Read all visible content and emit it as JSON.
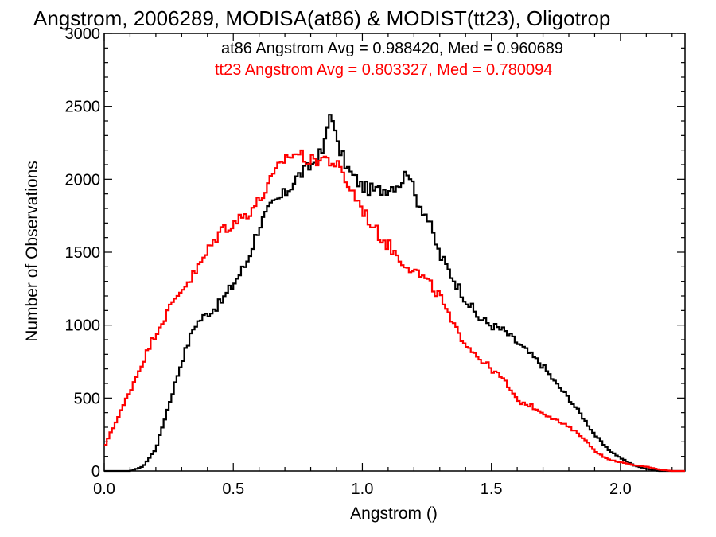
{
  "chart_data": {
    "type": "line",
    "title": "Angstrom, 2006289, MODISA(at86) & MODIST(tt23), Oligotrop",
    "xlabel": "Angstrom ()",
    "ylabel": "Number of Observations",
    "xlim": [
      0.0,
      2.25
    ],
    "ylim": [
      0,
      3000
    ],
    "xticks": [
      0.0,
      0.5,
      1.0,
      1.5,
      2.0
    ],
    "xtick_labels": [
      "0.0",
      "0.5",
      "1.0",
      "1.5",
      "2.0"
    ],
    "yticks": [
      0,
      500,
      1000,
      1500,
      2000,
      2500,
      3000
    ],
    "ytick_labels": [
      "0",
      "500",
      "1000",
      "1500",
      "2000",
      "2500",
      "3000"
    ],
    "step": "histogram",
    "annotations": [
      {
        "text": "at86 Angstrom Avg = 0.988420, Med = 0.960689",
        "color": "#000000"
      },
      {
        "text": "tt23 Angstrom Avg = 0.803327, Med = 0.780094",
        "color": "#ff0000"
      }
    ],
    "series": [
      {
        "color": "#000000",
        "x": [
          0.0,
          0.1,
          0.15,
          0.2,
          0.25,
          0.3,
          0.35,
          0.4,
          0.45,
          0.5,
          0.55,
          0.6,
          0.65,
          0.7,
          0.75,
          0.8,
          0.85,
          0.87,
          0.88,
          0.9,
          0.95,
          1.0,
          1.05,
          1.1,
          1.15,
          1.18,
          1.2,
          1.25,
          1.3,
          1.35,
          1.4,
          1.45,
          1.5,
          1.55,
          1.6,
          1.65,
          1.7,
          1.75,
          1.8,
          1.85,
          1.9,
          1.95,
          2.0,
          2.05,
          2.1,
          2.15,
          2.2,
          2.25
        ],
        "y": [
          0,
          0,
          30,
          150,
          450,
          750,
          1000,
          1080,
          1150,
          1280,
          1420,
          1680,
          1820,
          1900,
          2020,
          2090,
          2200,
          2400,
          2500,
          2250,
          2050,
          1950,
          1920,
          1940,
          1980,
          2080,
          1900,
          1750,
          1480,
          1330,
          1180,
          1050,
          1000,
          960,
          880,
          800,
          720,
          600,
          500,
          380,
          250,
          150,
          90,
          40,
          15,
          0,
          0,
          0
        ]
      },
      {
        "color": "#ff0000",
        "x": [
          0.0,
          0.02,
          0.05,
          0.1,
          0.15,
          0.2,
          0.25,
          0.3,
          0.35,
          0.4,
          0.45,
          0.5,
          0.55,
          0.6,
          0.65,
          0.7,
          0.75,
          0.8,
          0.85,
          0.9,
          0.95,
          1.0,
          1.05,
          1.1,
          1.15,
          1.2,
          1.25,
          1.3,
          1.35,
          1.4,
          1.45,
          1.5,
          1.55,
          1.6,
          1.65,
          1.7,
          1.75,
          1.8,
          1.85,
          1.9,
          1.95,
          2.0,
          2.05,
          2.1,
          2.15,
          2.2,
          2.25
        ],
        "y": [
          150,
          250,
          350,
          550,
          750,
          950,
          1100,
          1250,
          1350,
          1500,
          1650,
          1700,
          1760,
          1850,
          2000,
          2150,
          2180,
          2120,
          2150,
          2100,
          1950,
          1800,
          1650,
          1550,
          1450,
          1380,
          1300,
          1200,
          1000,
          880,
          780,
          700,
          620,
          480,
          450,
          400,
          350,
          300,
          240,
          140,
          80,
          60,
          40,
          30,
          10,
          0,
          0
        ]
      }
    ]
  }
}
